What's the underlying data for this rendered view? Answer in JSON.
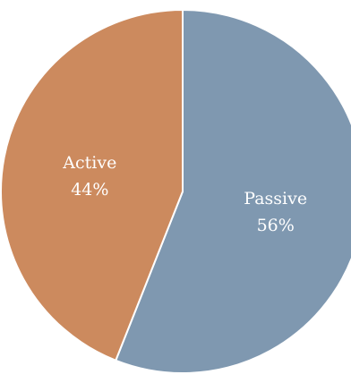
{
  "chart_data": {
    "type": "pie",
    "title": "",
    "slices": [
      {
        "label": "Passive",
        "value": 56,
        "value_label": "56%",
        "color": "#7f98b0"
      },
      {
        "label": "Active",
        "value": 44,
        "value_label": "44%",
        "color": "#cc8a5e"
      }
    ],
    "start": "top",
    "direction": "clockwise",
    "legend": "none"
  }
}
